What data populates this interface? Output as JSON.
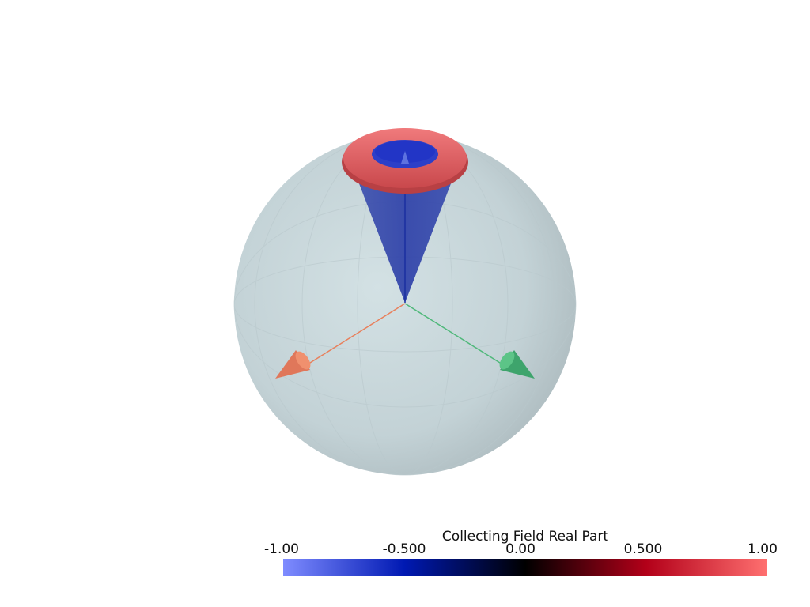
{
  "scalar_bar": {
    "title": "Collecting Field Real Part",
    "ticks": [
      "-1.00",
      "-0.500",
      "0.00",
      "0.500",
      "1.00"
    ],
    "range": [
      -1.0,
      1.0
    ],
    "colors": {
      "low": "#7f8cff",
      "mid_low": "#0019b3",
      "center": "#000000",
      "mid_high": "#b30019",
      "high": "#ff7070"
    }
  },
  "scene": {
    "sphere_color": "#c7d6da",
    "cone_color": "#2a3fa8",
    "ring_color": "#e85c60",
    "axis_x_color": "#e8805c",
    "axis_y_color": "#4fb87a"
  }
}
